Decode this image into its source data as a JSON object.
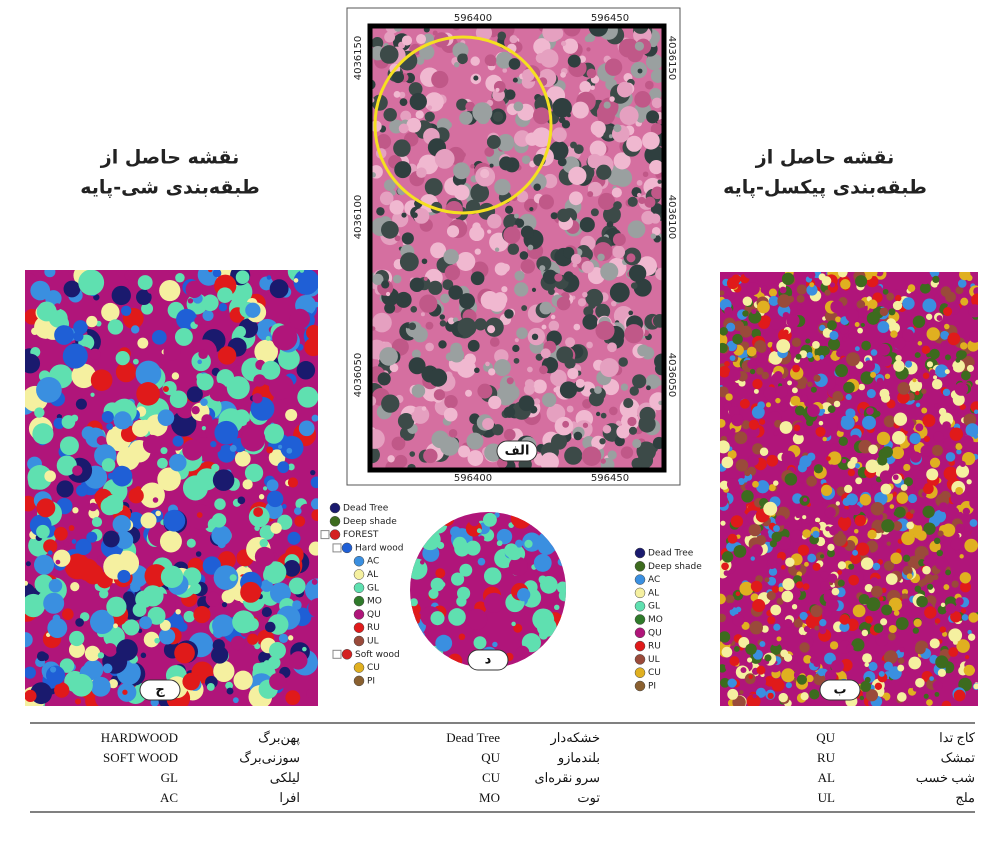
{
  "center_map": {
    "top_ticks": [
      "596400",
      "596450"
    ],
    "bottom_ticks": [
      "596400",
      "596450"
    ],
    "left_ticks": [
      "4036150",
      "4036100",
      "4036050"
    ],
    "right_ticks": [
      "4036150",
      "4036100",
      "4036050"
    ],
    "label": "الف"
  },
  "left_map": {
    "title": [
      "نقشه حاصل از",
      "طبقه‌بندی شی-پایه"
    ],
    "label": "ج"
  },
  "right_map": {
    "title": [
      "نقشه حاصل از",
      "طبقه‌بندی پیکسل-پایه"
    ],
    "label": "ب"
  },
  "circle_map": {
    "label": "د"
  },
  "legend_tree": [
    {
      "label": "Dead Tree",
      "color": "#1a1a6e"
    },
    {
      "label": "Deep shade",
      "color": "#3d6b1e"
    },
    {
      "label": "FOREST",
      "color": "#d42020"
    },
    {
      "label": "Hard wood",
      "color": "#1f5fd6"
    },
    {
      "label": "AC",
      "color": "#3a8fe0"
    },
    {
      "label": "AL",
      "color": "#f5f0a0"
    },
    {
      "label": "GL",
      "color": "#5fe0b0"
    },
    {
      "label": "MO",
      "color": "#2f7a2a"
    },
    {
      "label": "QU",
      "color": "#b0157a"
    },
    {
      "label": "RU",
      "color": "#e01a1a"
    },
    {
      "label": "UL",
      "color": "#9a4a3a"
    },
    {
      "label": "Soft wood",
      "color": "#d42020"
    },
    {
      "label": "CU",
      "color": "#e0b020"
    },
    {
      "label": "PI",
      "color": "#8a6030"
    }
  ],
  "legend_list": [
    {
      "label": "Dead Tree",
      "color": "#1a1a6e"
    },
    {
      "label": "Deep shade",
      "color": "#3d6b1e"
    },
    {
      "label": "AC",
      "color": "#3a8fe0"
    },
    {
      "label": "AL",
      "color": "#f5f0a0"
    },
    {
      "label": "GL",
      "color": "#5fe0b0"
    },
    {
      "label": "MO",
      "color": "#2f7a2a"
    },
    {
      "label": "QU",
      "color": "#b0157a"
    },
    {
      "label": "RU",
      "color": "#e01a1a"
    },
    {
      "label": "UL",
      "color": "#9a4a3a"
    },
    {
      "label": "CU",
      "color": "#e0b020"
    },
    {
      "label": "PI",
      "color": "#8a6030"
    }
  ],
  "table": {
    "rows": [
      [
        "کاج تدا",
        "QU",
        "خشکه‌دار",
        "Dead Tree",
        "پهن‌برگ",
        "HARDWOOD"
      ],
      [
        "تمشک",
        "RU",
        "بلندمازو",
        "QU",
        "سوزنی‌برگ",
        "SOFT WOOD"
      ],
      [
        "شب خسب",
        "AL",
        "سرو نقره‌ای",
        "CU",
        "لیلکی",
        "GL"
      ],
      [
        "ملج",
        "UL",
        "توت",
        "MO",
        "افرا",
        "AC"
      ]
    ]
  }
}
